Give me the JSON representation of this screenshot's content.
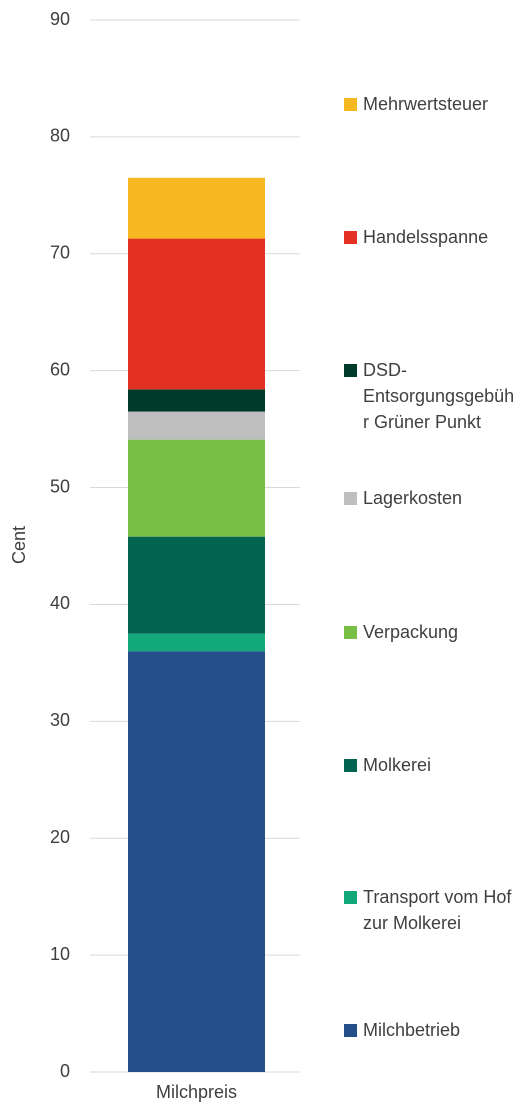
{
  "chart_data": {
    "type": "stacked_bar",
    "y_label": "Cent",
    "categories": [
      "Milchpreis"
    ],
    "series": [
      {
        "name": "Milchbetrieb",
        "color": "#244f8b",
        "values": [
          36
        ]
      },
      {
        "name": "Transport vom Hof zur Molkerei",
        "color": "#12a87a",
        "values": [
          1.5
        ]
      },
      {
        "name": "Molkerei",
        "color": "#006450",
        "values": [
          8.3
        ]
      },
      {
        "name": "Verpackung",
        "color": "#77bf45",
        "values": [
          8.3
        ]
      },
      {
        "name": "Lagerkosten",
        "color": "#bfbfbf",
        "values": [
          2.4
        ]
      },
      {
        "name": "DSD-Entsorgungsgebühr Grüner Punkt",
        "color": "#003a2a",
        "values": [
          1.9
        ]
      },
      {
        "name": "Handelsspanne",
        "color": "#e33224",
        "values": [
          12.9
        ]
      },
      {
        "name": "Mehrwertsteuer",
        "color": "#f6b822",
        "values": [
          5.2
        ]
      }
    ],
    "ylim": [
      0,
      90
    ],
    "yticks": [
      0,
      10,
      20,
      30,
      40,
      50,
      60,
      70,
      80,
      90
    ],
    "grid": true,
    "legend": "right"
  }
}
